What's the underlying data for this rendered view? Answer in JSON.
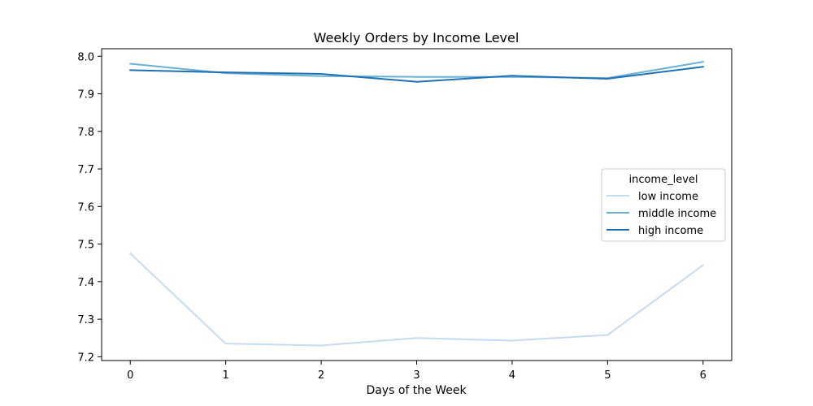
{
  "chart_data": {
    "type": "line",
    "title": "Weekly Orders by Income Level",
    "xlabel": "Days of the Week",
    "ylabel": "",
    "x": [
      0,
      1,
      2,
      3,
      4,
      5,
      6
    ],
    "x_ticks": [
      "0",
      "1",
      "2",
      "3",
      "4",
      "5",
      "6"
    ],
    "xlim": [
      -0.3,
      6.3
    ],
    "ylim": [
      7.19,
      8.02
    ],
    "y_ticks": [
      7.2,
      7.3,
      7.4,
      7.5,
      7.6,
      7.7,
      7.8,
      7.9,
      8.0
    ],
    "y_tick_labels": [
      "7.2",
      "7.3",
      "7.4",
      "7.5",
      "7.6",
      "7.7",
      "7.8",
      "7.9",
      "8.0"
    ],
    "grid": false,
    "legend": {
      "title": "income_level",
      "position": "center-right"
    },
    "series": [
      {
        "name": "low income",
        "color": "#c6dbef",
        "values": [
          7.475,
          7.235,
          7.23,
          7.25,
          7.243,
          7.258,
          7.444
        ]
      },
      {
        "name": "middle income",
        "color": "#6baed6",
        "values": [
          7.98,
          7.955,
          7.947,
          7.945,
          7.945,
          7.942,
          7.985
        ]
      },
      {
        "name": "high income",
        "color": "#2171b5",
        "values": [
          7.963,
          7.957,
          7.953,
          7.932,
          7.948,
          7.94,
          7.972
        ]
      }
    ]
  }
}
